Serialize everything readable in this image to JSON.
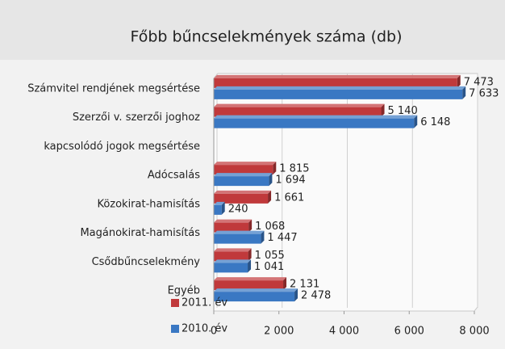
{
  "chart_data": {
    "type": "bar",
    "orientation": "horizontal",
    "title": "Főbb bűncselekmények száma (db)",
    "categories": [
      "Számvitel rendjének megsértése",
      "Szerzői v. szerzői joghoz",
      "kapcsolódó jogok megsértése",
      "Adócsalás",
      "Közokirat-hamisítás",
      "Magánokirat-hamisítás",
      "Csődbűncselekmény",
      "Egyéb"
    ],
    "series": [
      {
        "name": "2011. év",
        "color": "#c0393b",
        "values": [
          7473,
          5140,
          null,
          1815,
          1661,
          1068,
          1055,
          2131
        ],
        "value_labels": [
          "7 473",
          "5 140",
          null,
          "1 815",
          "1 661",
          "1 068",
          "1 055",
          "2 131"
        ]
      },
      {
        "name": "2010. év",
        "color": "#3a78c3",
        "values": [
          7633,
          6148,
          null,
          1694,
          240,
          1447,
          1041,
          2478
        ],
        "value_labels": [
          "7 633",
          "6 148",
          null,
          "1 694",
          "240",
          "1 447",
          "1 041",
          "2 478"
        ]
      }
    ],
    "xlim": [
      0,
      8000
    ],
    "xticks": [
      0,
      {
        "value": 2000,
        "label": "2 000"
      },
      {
        "value": 4000,
        "label": "4 000"
      },
      {
        "value": 6000,
        "label": "6 000"
      },
      {
        "value": 8000,
        "label": "8 000"
      }
    ],
    "grid": true,
    "legend": "bottom-left"
  }
}
